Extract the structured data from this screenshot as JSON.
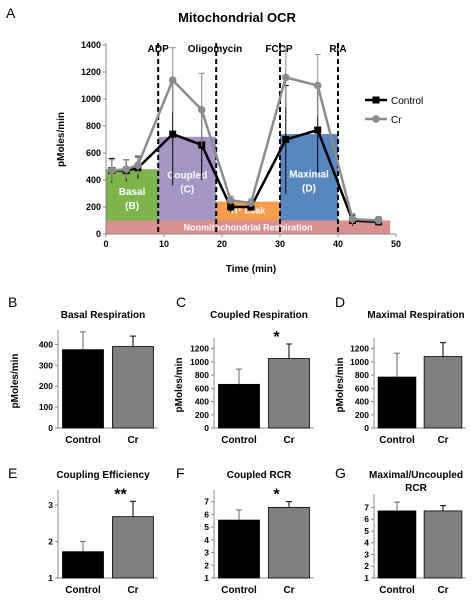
{
  "figure": {
    "panel_A": {
      "letter": "A"
    },
    "panel_B": {
      "letter": "B"
    },
    "panel_C": {
      "letter": "C"
    },
    "panel_D": {
      "letter": "D"
    },
    "panel_E": {
      "letter": "E"
    },
    "panel_F": {
      "letter": "F"
    },
    "panel_G": {
      "letter": "G"
    }
  },
  "chart_data": [
    {
      "id": "A",
      "type": "line",
      "title": "Mitochondrial OCR",
      "xlabel": "Time (min)",
      "ylabel": "pMoles/min",
      "xlim": [
        0,
        50
      ],
      "ylim": [
        0,
        1400
      ],
      "xticks": [
        0,
        10,
        20,
        30,
        40,
        50
      ],
      "yticks": [
        0,
        200,
        400,
        600,
        800,
        1000,
        1200,
        1400
      ],
      "legend": {
        "position": "right",
        "entries": [
          "Control",
          "Cr"
        ]
      },
      "colors": {
        "Control": "#000000",
        "Cr": "#8c8c8c",
        "basal": "#76b041",
        "coupled": "#a08fc1",
        "leak": "#f79646",
        "maximal": "#4f81bd",
        "nonmito": "#d98a8a"
      },
      "series": [
        {
          "name": "Control",
          "x": [
            1,
            3.5,
            5.5,
            11.5,
            16.5,
            21.5,
            25,
            31,
            36.5,
            42.5,
            47
          ],
          "y": [
            470,
            470,
            490,
            740,
            660,
            200,
            200,
            700,
            770,
            100,
            90
          ],
          "err": [
            90,
            80,
            80,
            380,
            260,
            40,
            30,
            400,
            320,
            40,
            30
          ]
        },
        {
          "name": "Cr",
          "x": [
            1,
            3.5,
            5.5,
            11.5,
            16.5,
            21.5,
            25,
            31,
            36.5,
            42.5,
            47
          ],
          "y": [
            470,
            480,
            510,
            1140,
            920,
            250,
            230,
            1160,
            1100,
            110,
            100
          ],
          "err": [
            80,
            70,
            70,
            240,
            270,
            30,
            30,
            220,
            230,
            40,
            30
          ]
        }
      ],
      "injections": [
        {
          "label": "ADP",
          "x": 9
        },
        {
          "label": "Oligomycin",
          "x": 19
        },
        {
          "label": "FCCP",
          "x": 30
        },
        {
          "label": "R/A",
          "x": 40
        }
      ],
      "regions": [
        {
          "label": "Basal",
          "sublabel": "(B)",
          "x0": 0,
          "x1": 9,
          "y0": 100,
          "y1": 480,
          "color": "basal"
        },
        {
          "label": "Coupled",
          "sublabel": "(C)",
          "x0": 9,
          "x1": 19,
          "y0": 100,
          "y1": 720,
          "color": "coupled"
        },
        {
          "label": "H⁺ Leak",
          "sublabel": "",
          "x0": 19,
          "x1": 30,
          "y0": 100,
          "y1": 240,
          "color": "leak"
        },
        {
          "label": "Maximal",
          "sublabel": "(D)",
          "x0": 30,
          "x1": 40,
          "y0": 100,
          "y1": 740,
          "color": "maximal"
        },
        {
          "label": "Nonmitochondrial Respiration",
          "sublabel": "",
          "x0": 0,
          "x1": 49,
          "y0": 0,
          "y1": 100,
          "color": "nonmito"
        }
      ]
    },
    {
      "id": "B",
      "type": "bar",
      "title": "Basal Respiration",
      "ylabel": "pMoles/min",
      "categories": [
        "Control",
        "Cr"
      ],
      "values": [
        375,
        390
      ],
      "err": [
        85,
        50
      ],
      "ylim": [
        0,
        450
      ],
      "yticks": [
        0,
        100,
        200,
        300,
        400
      ],
      "significance": ""
    },
    {
      "id": "C",
      "type": "bar",
      "title": "Coupled Respiration",
      "ylabel": "pMoles/min",
      "categories": [
        "Control",
        "Cr"
      ],
      "values": [
        660,
        1050
      ],
      "err": [
        230,
        220
      ],
      "ylim": [
        0,
        1300
      ],
      "yticks": [
        0,
        200,
        400,
        600,
        800,
        1000,
        1200
      ],
      "significance": "*"
    },
    {
      "id": "D",
      "type": "bar",
      "title": "Maximal Respiration",
      "ylabel": "pMoles/min",
      "categories": [
        "Control",
        "Cr"
      ],
      "values": [
        770,
        1080
      ],
      "err": [
        360,
        210
      ],
      "ylim": [
        0,
        1300
      ],
      "yticks": [
        0,
        200,
        400,
        600,
        800,
        1000,
        1200
      ],
      "significance": ""
    },
    {
      "id": "E",
      "type": "bar",
      "title": "Coupling Efficiency",
      "ylabel": "",
      "categories": [
        "Control",
        "Cr"
      ],
      "values": [
        1.72,
        2.68
      ],
      "err": [
        0.28,
        0.42
      ],
      "ylim": [
        1,
        3.3
      ],
      "yticks": [
        1,
        2,
        3
      ],
      "significance": "**"
    },
    {
      "id": "F",
      "type": "bar",
      "title": "Coupled RCR",
      "ylabel": "",
      "categories": [
        "Control",
        "Cr"
      ],
      "values": [
        5.55,
        6.55
      ],
      "err": [
        0.8,
        0.45
      ],
      "ylim": [
        1,
        7.6
      ],
      "yticks": [
        1,
        2,
        3,
        4,
        5,
        6,
        7
      ],
      "significance": "*"
    },
    {
      "id": "G",
      "type": "bar",
      "title": "Maximal/Uncoupled\nRCR",
      "ylabel": "",
      "categories": [
        "Control",
        "Cr"
      ],
      "values": [
        6.7,
        6.7
      ],
      "err": [
        0.75,
        0.45
      ],
      "ylim": [
        1,
        7.8
      ],
      "yticks": [
        1,
        2,
        3,
        4,
        5,
        6,
        7
      ],
      "significance": ""
    }
  ]
}
